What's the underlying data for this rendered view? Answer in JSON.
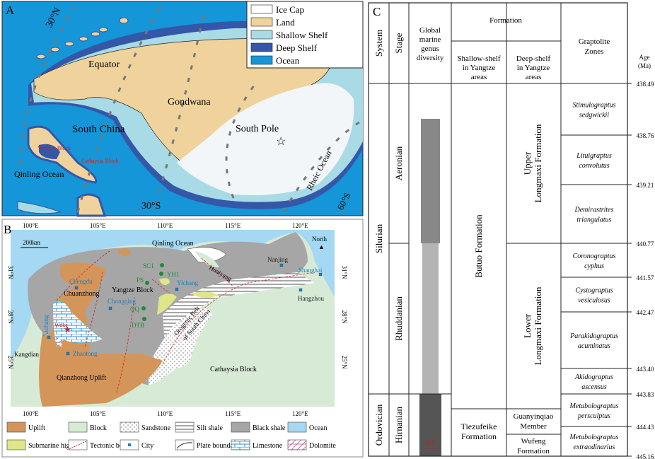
{
  "panelA": {
    "letter": "A",
    "labels": {
      "lat_n": "30°N",
      "lat_s": "30°S",
      "lat_s60": "60°S",
      "equator": "Equator",
      "gondwana": "Gondwana",
      "south_china": "South China",
      "south_pole": "South Pole",
      "qinling": "Qinling Ocean",
      "rheic": "Rheic Ocean",
      "yangtze": "Yangtze Block",
      "cathaysia": "Cathaysia Block"
    },
    "legend": [
      {
        "label": "Ice Cap",
        "color": "#ffffff"
      },
      {
        "label": "Land",
        "color": "#f0d39c"
      },
      {
        "label": "Shallow Shelf",
        "color": "#a9dbe6"
      },
      {
        "label": "Deep Shelf",
        "color": "#3557a8"
      },
      {
        "label": "Ocean",
        "color": "#1596d8"
      }
    ]
  },
  "panelB": {
    "letter": "B",
    "lon_ticks": [
      "100°E",
      "105°E",
      "110°E",
      "115°E",
      "120°E"
    ],
    "lat_ticks": [
      "31°N",
      "28°N",
      "25°N"
    ],
    "scale": "200km",
    "north": "North",
    "labels": {
      "qinling": "Qinling Ocean",
      "yangtze": "Yangtze Block",
      "chuanzhong": "Chuanzhong",
      "huaiyang": "Huaiyang",
      "orogenic": "Orogenic Belt",
      "orogenic2": "of South China",
      "kangdian": "Kangdian",
      "qianzhong": "Qianzhong Uplift",
      "cathaysia": "Cathaysia Block",
      "wuke": "Wuke"
    },
    "cities": [
      "Chengdu",
      "Chongqing",
      "Yichang",
      "Xichang",
      "Zhaotong",
      "Nanjing",
      "Shanghai",
      "Hangzhou"
    ],
    "wells": [
      "SC1",
      "YH1",
      "PS",
      "QQ",
      "DTB"
    ],
    "legend": [
      {
        "label": "Uplift",
        "color": "#d4955a"
      },
      {
        "label": "Block",
        "color": "#d6ead6"
      },
      {
        "label": "Sandstone"
      },
      {
        "label": "Silt shale"
      },
      {
        "label": "Black shale",
        "color": "#a6a6a6"
      },
      {
        "label": "Ocean",
        "color": "#a5d8f2"
      },
      {
        "label": "Submarine high",
        "color": "#dfe68a"
      },
      {
        "label": "Tectonic belt"
      },
      {
        "label": "City"
      },
      {
        "label": "Plate boundary"
      },
      {
        "label": "Limestone"
      },
      {
        "label": "Dolomite"
      }
    ]
  },
  "panelC": {
    "letter": "C",
    "headers": {
      "system": "System",
      "stage": "Stage",
      "diversity": [
        "Global",
        "marine",
        "genus",
        "diversity"
      ],
      "formation": "Formation",
      "shallow": [
        "Shallow-shelf",
        "in Yangtze",
        "areas"
      ],
      "deep": [
        "Deep-shelf",
        "in Yangtze",
        "areas"
      ],
      "graptolite": [
        "Graptolite",
        "Zones"
      ],
      "age": [
        "Age",
        "(Ma)"
      ]
    },
    "ages": [
      "438.49",
      "438.76",
      "439.21",
      "440.77",
      "441.57",
      "442.47",
      "443.40",
      "443.83",
      "444.43",
      "445.16"
    ],
    "systems": [
      {
        "name": "Silurian",
        "from": 0,
        "to": 7
      },
      {
        "name": "Ordovician",
        "from": 7,
        "to": 9
      }
    ],
    "stages": [
      {
        "name": "Aeronian",
        "from": 0,
        "to": 3
      },
      {
        "name": "Rhuddanian",
        "from": 3,
        "to": 7
      },
      {
        "name": "Hirnanian",
        "from": 7,
        "to": 9
      }
    ],
    "shallow_formations": [
      "Butuo Formation",
      [
        "Tiezufeike",
        "Formation"
      ]
    ],
    "deep_formations": [
      [
        "Upper",
        "Longmaxi Formation"
      ],
      [
        "Lower",
        "Longmaxi Formation"
      ],
      [
        "Guanyinqiao",
        "Member"
      ],
      [
        "Wufeng",
        "Formation"
      ]
    ],
    "zones": [
      [
        "Stimulograptus",
        "sedgwickii"
      ],
      [
        "Lituigraptus",
        "convolutus"
      ],
      [
        "Demirastrites",
        "triangulatus"
      ],
      [
        "Coronograptus",
        "cyphus"
      ],
      [
        "Cystograptus",
        "vesiculosus"
      ],
      [
        "Parakidograptus",
        "acuminatus"
      ],
      [
        "Akidograptus",
        "ascensus"
      ],
      [
        "Metabolograptus",
        "persculptus"
      ],
      [
        "Metabolograptus",
        "extraodinarius"
      ]
    ],
    "diversity_scale": "300",
    "diversity_colors": [
      "#888888",
      "#b4b4b4",
      "#555555"
    ]
  }
}
